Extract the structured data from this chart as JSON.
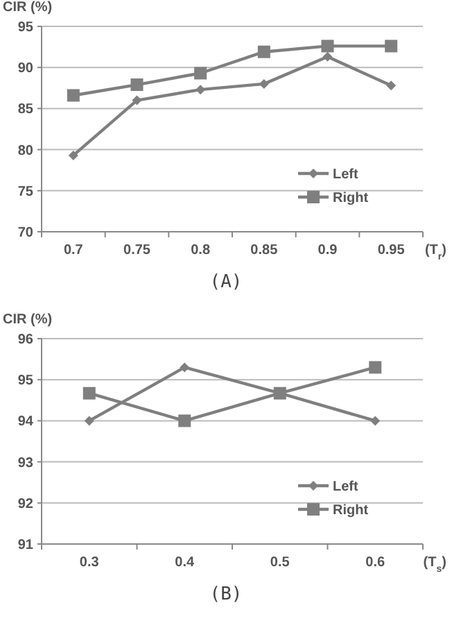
{
  "chart_data": [
    {
      "type": "line",
      "title": "(A)",
      "xlabel": "(T$_{r}$)",
      "ylabel": "CIR (%)",
      "categories": [
        "0.7",
        "0.75",
        "0.8",
        "0.85",
        "0.9",
        "0.95"
      ],
      "ylim": [
        70,
        95
      ],
      "yticks": [
        70,
        75,
        80,
        85,
        90,
        95
      ],
      "grid": "y",
      "legend": "bottom right",
      "series": [
        {
          "name": "Left",
          "color": "#7f7f7f",
          "marker": "diamond",
          "values": [
            79.3,
            86,
            87.3,
            88,
            91.3,
            87.8
          ]
        },
        {
          "name": "Right",
          "color": "#7f7f7f",
          "marker": "square",
          "values": [
            86.6,
            87.9,
            89.3,
            91.9,
            92.6,
            92.6
          ]
        }
      ]
    },
    {
      "type": "line",
      "title": "(B)",
      "xlabel": "(T$_{s}$)",
      "ylabel": "CIR (%)",
      "categories": [
        "0.3",
        "0.4",
        "0.5",
        "0.6"
      ],
      "ylim": [
        91,
        96
      ],
      "yticks": [
        91,
        92,
        93,
        94,
        95,
        96
      ],
      "grid": "y",
      "legend": "bottom right",
      "series": [
        {
          "name": "Left",
          "color": "#7f7f7f",
          "marker": "diamond",
          "values": [
            94,
            95.3,
            94.67,
            94
          ]
        },
        {
          "name": "Right",
          "color": "#7f7f7f",
          "marker": "square",
          "values": [
            94.67,
            94,
            94.67,
            95.3
          ]
        }
      ]
    }
  ]
}
